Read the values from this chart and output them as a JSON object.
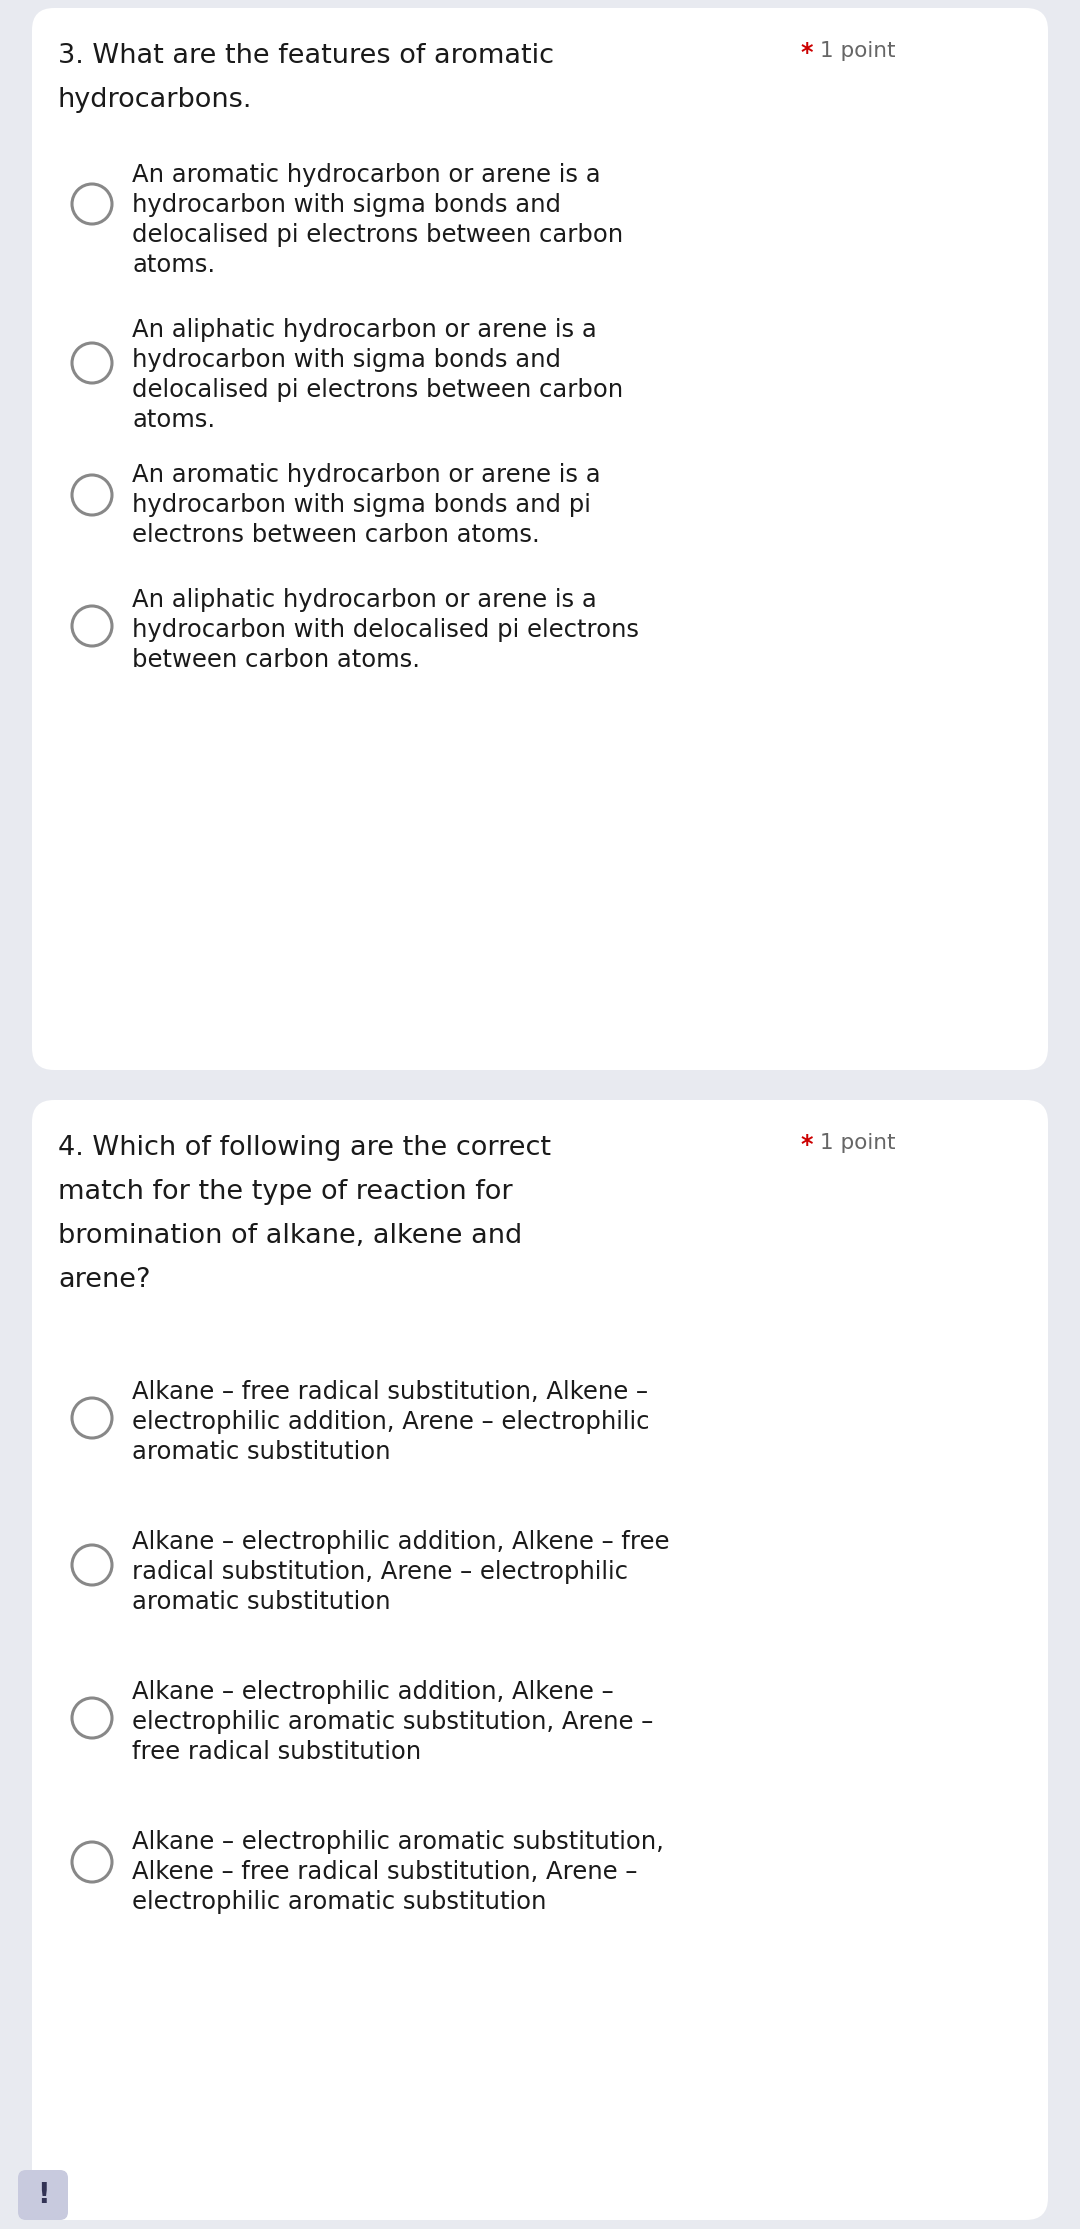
{
  "bg_color": "#e8eaf0",
  "card_color": "#ffffff",
  "text_color": "#1a1a1a",
  "star_color": "#cc0000",
  "point_color": "#666666",
  "radio_color": "#888888",
  "figsize": [
    10.8,
    22.29
  ],
  "dpi": 100,
  "question3": {
    "q_line1": "3. What are the features of aromatic",
    "q_line2": "hydrocarbons.",
    "point_label_star": "*",
    "point_label_text": "1 point",
    "options": [
      [
        "An aromatic hydrocarbon or arene is a",
        "hydrocarbon with sigma bonds and",
        "delocalised pi electrons between carbon",
        "atoms."
      ],
      [
        "An aliphatic hydrocarbon or arene is a",
        "hydrocarbon with sigma bonds and",
        "delocalised pi electrons between carbon",
        "atoms."
      ],
      [
        "An aromatic hydrocarbon or arene is a",
        "hydrocarbon with sigma bonds and pi",
        "electrons between carbon atoms."
      ],
      [
        "An aliphatic hydrocarbon or arene is a",
        "hydrocarbon with delocalised pi electrons",
        "between carbon atoms."
      ]
    ]
  },
  "question4": {
    "q_lines": [
      "4. Which of following are the correct",
      "match for the type of reaction for",
      "bromination of alkane, alkene and",
      "arene?"
    ],
    "point_label_star": "*",
    "point_label_text": "1 point",
    "options": [
      [
        "Alkane – free radical substitution, Alkene –",
        "electrophilic addition, Arene – electrophilic",
        "aromatic substitution"
      ],
      [
        "Alkane – electrophilic addition, Alkene – free",
        "radical substitution, Arene – electrophilic",
        "aromatic substitution"
      ],
      [
        "Alkane – electrophilic addition, Alkene –",
        "electrophilic aromatic substitution, Arene –",
        "free radical substitution"
      ],
      [
        "Alkane – electrophilic aromatic substitution,",
        "Alkene – free radical substitution, Arene –",
        "electrophilic aromatic substitution"
      ]
    ]
  }
}
